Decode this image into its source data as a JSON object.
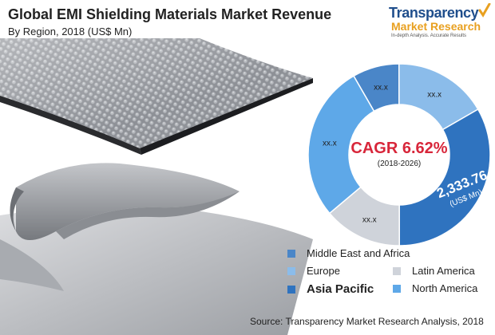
{
  "header": {
    "title": "Global EMI Shielding Materials Market Revenue",
    "subtitle": "By Region, 2018 (US$ Mn)"
  },
  "logo": {
    "line1": "Transparency",
    "line2": "Market Research",
    "line3": "In-depth Analysis. Accurate Results"
  },
  "center": {
    "cagr": "CAGR 6.62%",
    "period": "(2018-2026)"
  },
  "colors": {
    "middle_east_africa": "#4a86c8",
    "europe": "#8bbcea",
    "latin_america": "#cfd3da",
    "asia_pacific": "#2f73bf",
    "north_america": "#5ea8e8",
    "cagr_text": "#d8263a",
    "ring_inner": "#ffffff"
  },
  "chart_data": {
    "type": "pie",
    "title": "Global EMI Shielding Materials Market Revenue",
    "subtitle": "By Region, 2018 (US$ Mn)",
    "legend_position": "bottom-right",
    "slices": [
      {
        "name": "Middle East and Africa",
        "label": "xx.x",
        "share": 0.083,
        "color_key": "middle_east_africa"
      },
      {
        "name": "Europe",
        "label": "xx.x",
        "share": 0.167,
        "color_key": "europe"
      },
      {
        "name": "Asia Pacific",
        "label": "2,333.76",
        "unit": "(US$ Mn)",
        "value": 2333.76,
        "share": 0.333,
        "color_key": "asia_pacific"
      },
      {
        "name": "Latin America",
        "label": "xx.x",
        "share": 0.139,
        "color_key": "latin_america"
      },
      {
        "name": "North America",
        "label": "xx.x",
        "share": 0.278,
        "color_key": "north_america"
      }
    ]
  },
  "legend": [
    {
      "label": "Middle East and Africa",
      "color_key": "middle_east_africa",
      "bold": false
    },
    {
      "label": "Europe",
      "color_key": "europe",
      "bold": false
    },
    {
      "label": "Latin America",
      "color_key": "latin_america",
      "bold": false
    },
    {
      "label": "Asia Pacific",
      "color_key": "asia_pacific",
      "bold": true
    },
    {
      "label": "North America",
      "color_key": "north_america",
      "bold": false
    }
  ],
  "source": "Source: Transparency Market Research Analysis, 2018"
}
